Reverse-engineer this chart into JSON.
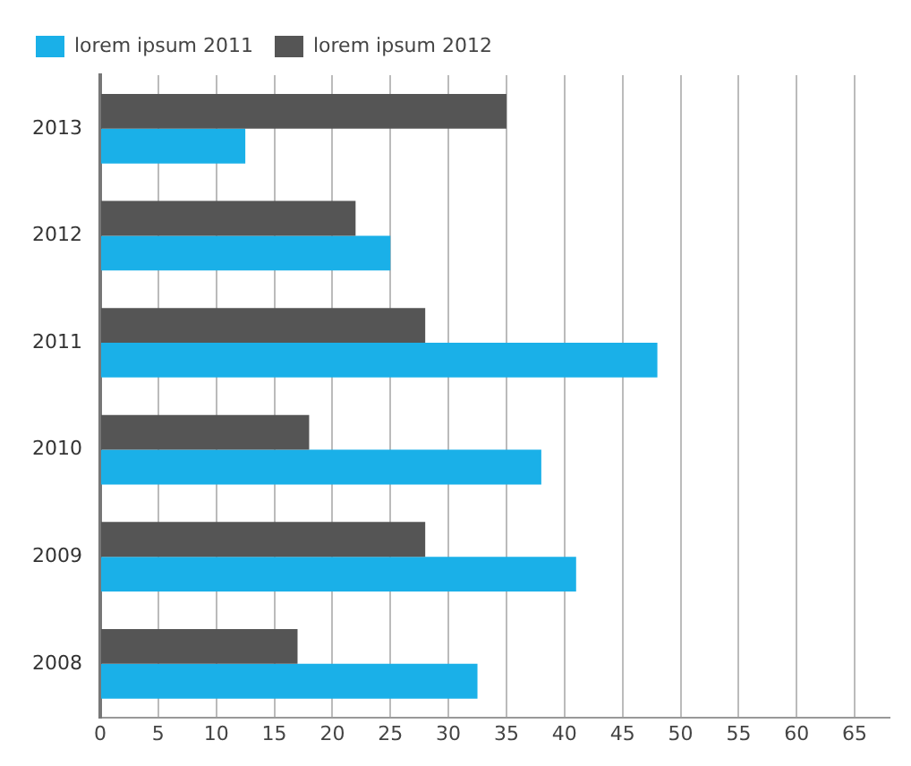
{
  "chart_data": {
    "type": "bar",
    "orientation": "horizontal",
    "categories": [
      "2013",
      "2012",
      "2011",
      "2010",
      "2009",
      "2008"
    ],
    "series": [
      {
        "name": "lorem ipsum 2011",
        "color": "#1ab0e8",
        "values": [
          12.5,
          25,
          48,
          38,
          41,
          32.5
        ]
      },
      {
        "name": "lorem ipsum 2012",
        "color": "#555555",
        "values": [
          35,
          22,
          28,
          18,
          28,
          17
        ]
      }
    ],
    "xlim": [
      0,
      68
    ],
    "xticks": [
      0,
      5,
      10,
      15,
      20,
      25,
      30,
      35,
      40,
      45,
      50,
      55,
      60,
      65
    ],
    "grid": "x",
    "legend": "top left"
  }
}
